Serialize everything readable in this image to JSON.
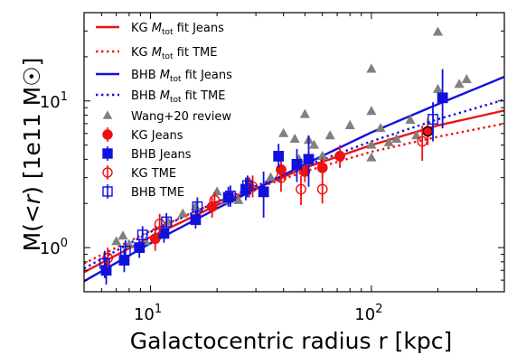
{
  "chart_data": {
    "type": "scatter",
    "title": "",
    "xlabel": "Galactocentric radius r [kpc]",
    "ylabel": "M(< r) [1e11 M☉]",
    "xscale": "log",
    "yscale": "log",
    "xlim": [
      5,
      400
    ],
    "ylim": [
      0.5,
      40
    ],
    "x_tick_labels": [
      {
        "value": 10,
        "base": "10",
        "exp": "1"
      },
      {
        "value": 100,
        "base": "10",
        "exp": "2"
      }
    ],
    "y_tick_labels": [
      {
        "value": 1,
        "base": "10",
        "exp": "0"
      },
      {
        "value": 10,
        "base": "10",
        "exp": "1"
      }
    ],
    "grid": false,
    "legend_position": "upper-left",
    "lines": [
      {
        "label": "KG M_tot fit Jeans",
        "color": "#ee1111",
        "style": "solid",
        "x": [
          5,
          10,
          20,
          50,
          100,
          200,
          400
        ],
        "y": [
          0.68,
          1.18,
          1.95,
          3.5,
          5.0,
          6.8,
          8.6
        ]
      },
      {
        "label": "KG M_tot fit TME",
        "color": "#ee1111",
        "style": "dotted",
        "x": [
          5,
          10,
          20,
          50,
          100,
          200,
          400
        ],
        "y": [
          0.78,
          1.3,
          2.05,
          3.3,
          4.5,
          5.7,
          7.0
        ]
      },
      {
        "label": "BHB M_tot fit Jeans",
        "color": "#1111dd",
        "style": "solid",
        "x": [
          5,
          10,
          20,
          50,
          100,
          200,
          400
        ],
        "y": [
          0.59,
          1.07,
          1.85,
          3.7,
          6.1,
          9.5,
          14.6
        ]
      },
      {
        "label": "BHB M_tot fit TME",
        "color": "#1111dd",
        "style": "dotted",
        "x": [
          5,
          10,
          20,
          50,
          100,
          200,
          400
        ],
        "y": [
          0.72,
          1.28,
          2.05,
          3.6,
          5.3,
          7.5,
          10.2
        ]
      }
    ],
    "series": [
      {
        "label": "Wang+20 review",
        "marker": "triangle",
        "color": "#808080",
        "points": [
          [
            7,
            1.1
          ],
          [
            7.5,
            1.2
          ],
          [
            8,
            1.05
          ],
          [
            9,
            1.0
          ],
          [
            9.5,
            1.1
          ],
          [
            10.5,
            1.2
          ],
          [
            12,
            1.5
          ],
          [
            14,
            1.7
          ],
          [
            16,
            1.9
          ],
          [
            20,
            2.4
          ],
          [
            22,
            2.1
          ],
          [
            25,
            2.1
          ],
          [
            28,
            2.8
          ],
          [
            35,
            3.0
          ],
          [
            40,
            6.0
          ],
          [
            45,
            5.5
          ],
          [
            47,
            4.0
          ],
          [
            50,
            8.1
          ],
          [
            52,
            5.4
          ],
          [
            55,
            5.0
          ],
          [
            60,
            4.2
          ],
          [
            65,
            5.8
          ],
          [
            80,
            6.8
          ],
          [
            100,
            16.5
          ],
          [
            100,
            8.5
          ],
          [
            100,
            5.0
          ],
          [
            100,
            4.1
          ],
          [
            110,
            6.5
          ],
          [
            120,
            5.2
          ],
          [
            130,
            5.5
          ],
          [
            150,
            7.4
          ],
          [
            160,
            5.8
          ],
          [
            200,
            29.5
          ],
          [
            200,
            12.0
          ],
          [
            250,
            13.0
          ],
          [
            270,
            14.0
          ]
        ]
      },
      {
        "label": "KG Jeans",
        "marker": "circle",
        "filled": true,
        "color": "#ee1111",
        "points": [
          {
            "x": 10.5,
            "y": 1.15,
            "lo": 0.95,
            "hi": 1.4
          },
          {
            "x": 19,
            "y": 1.9,
            "lo": 1.6,
            "hi": 2.2
          },
          {
            "x": 28,
            "y": 2.6,
            "lo": 2.2,
            "hi": 3.0
          },
          {
            "x": 39,
            "y": 3.4,
            "lo": 2.9,
            "hi": 4.0
          },
          {
            "x": 50,
            "y": 3.3,
            "lo": 2.8,
            "hi": 3.9
          },
          {
            "x": 60,
            "y": 3.5,
            "lo": 3.0,
            "hi": 4.1
          },
          {
            "x": 72,
            "y": 4.2,
            "lo": 3.5,
            "hi": 5.0
          },
          {
            "x": 180,
            "y": 6.2,
            "lo": 5.0,
            "hi": 7.6
          }
        ]
      },
      {
        "label": "BHB Jeans",
        "marker": "square",
        "filled": true,
        "color": "#1111dd",
        "points": [
          {
            "x": 6.3,
            "y": 0.7,
            "lo": 0.56,
            "hi": 0.86
          },
          {
            "x": 7.6,
            "y": 0.82,
            "lo": 0.68,
            "hi": 0.98
          },
          {
            "x": 8.9,
            "y": 1.0,
            "lo": 0.85,
            "hi": 1.15
          },
          {
            "x": 11.5,
            "y": 1.25,
            "lo": 1.08,
            "hi": 1.45
          },
          {
            "x": 16,
            "y": 1.55,
            "lo": 1.35,
            "hi": 1.8
          },
          {
            "x": 22.5,
            "y": 2.2,
            "lo": 1.9,
            "hi": 2.6
          },
          {
            "x": 27,
            "y": 2.5,
            "lo": 2.1,
            "hi": 3.0
          },
          {
            "x": 32.5,
            "y": 2.4,
            "lo": 1.6,
            "hi": 3.3
          },
          {
            "x": 38,
            "y": 4.2,
            "lo": 3.5,
            "hi": 5.1
          },
          {
            "x": 46,
            "y": 3.7,
            "lo": 2.8,
            "hi": 4.7
          },
          {
            "x": 52,
            "y": 4.0,
            "lo": 2.6,
            "hi": 5.8
          },
          {
            "x": 210,
            "y": 10.5,
            "lo": 6.5,
            "hi": 16.5
          }
        ]
      },
      {
        "label": "KG TME",
        "marker": "circle",
        "filled": false,
        "color": "#ee1111",
        "points": [
          {
            "x": 6.4,
            "y": 0.85,
            "lo": 0.72,
            "hi": 1.0
          },
          {
            "x": 11,
            "y": 1.45,
            "lo": 1.25,
            "hi": 1.7
          },
          {
            "x": 19.5,
            "y": 2.1,
            "lo": 1.8,
            "hi": 2.4
          },
          {
            "x": 29,
            "y": 2.6,
            "lo": 2.2,
            "hi": 3.1
          },
          {
            "x": 39,
            "y": 3.0,
            "lo": 2.4,
            "hi": 3.6
          },
          {
            "x": 48,
            "y": 2.5,
            "lo": 1.95,
            "hi": 3.1
          },
          {
            "x": 60,
            "y": 2.5,
            "lo": 2.0,
            "hi": 3.1
          },
          {
            "x": 170,
            "y": 5.3,
            "lo": 3.9,
            "hi": 6.8
          }
        ]
      },
      {
        "label": "BHB TME",
        "marker": "square",
        "filled": false,
        "color": "#1111dd",
        "points": [
          {
            "x": 6.2,
            "y": 0.78,
            "lo": 0.62,
            "hi": 0.95
          },
          {
            "x": 7.7,
            "y": 0.95,
            "lo": 0.8,
            "hi": 1.12
          },
          {
            "x": 9.2,
            "y": 1.22,
            "lo": 1.05,
            "hi": 1.4
          },
          {
            "x": 11.8,
            "y": 1.5,
            "lo": 1.3,
            "hi": 1.72
          },
          {
            "x": 16.3,
            "y": 1.9,
            "lo": 1.65,
            "hi": 2.2
          },
          {
            "x": 23,
            "y": 2.25,
            "lo": 1.9,
            "hi": 2.65
          },
          {
            "x": 27.5,
            "y": 2.65,
            "lo": 2.2,
            "hi": 3.1
          },
          {
            "x": 190,
            "y": 7.5,
            "lo": 5.3,
            "hi": 9.8
          }
        ]
      }
    ],
    "legend_labels": {
      "kg_fit_jeans": "KG M_tot fit Jeans",
      "kg_fit_tme": "KG M_tot fit TME",
      "bhb_fit_jeans": "BHB M_tot fit Jeans",
      "bhb_fit_tme": "BHB M_tot fit TME",
      "wang": "Wang+20 review",
      "kg_jeans": "KG Jeans",
      "bhb_jeans": "BHB Jeans",
      "kg_tme": "KG TME",
      "bhb_tme": "BHB TME"
    },
    "colors": {
      "red": "#ee1111",
      "blue": "#1111dd",
      "gray": "#808080"
    }
  }
}
